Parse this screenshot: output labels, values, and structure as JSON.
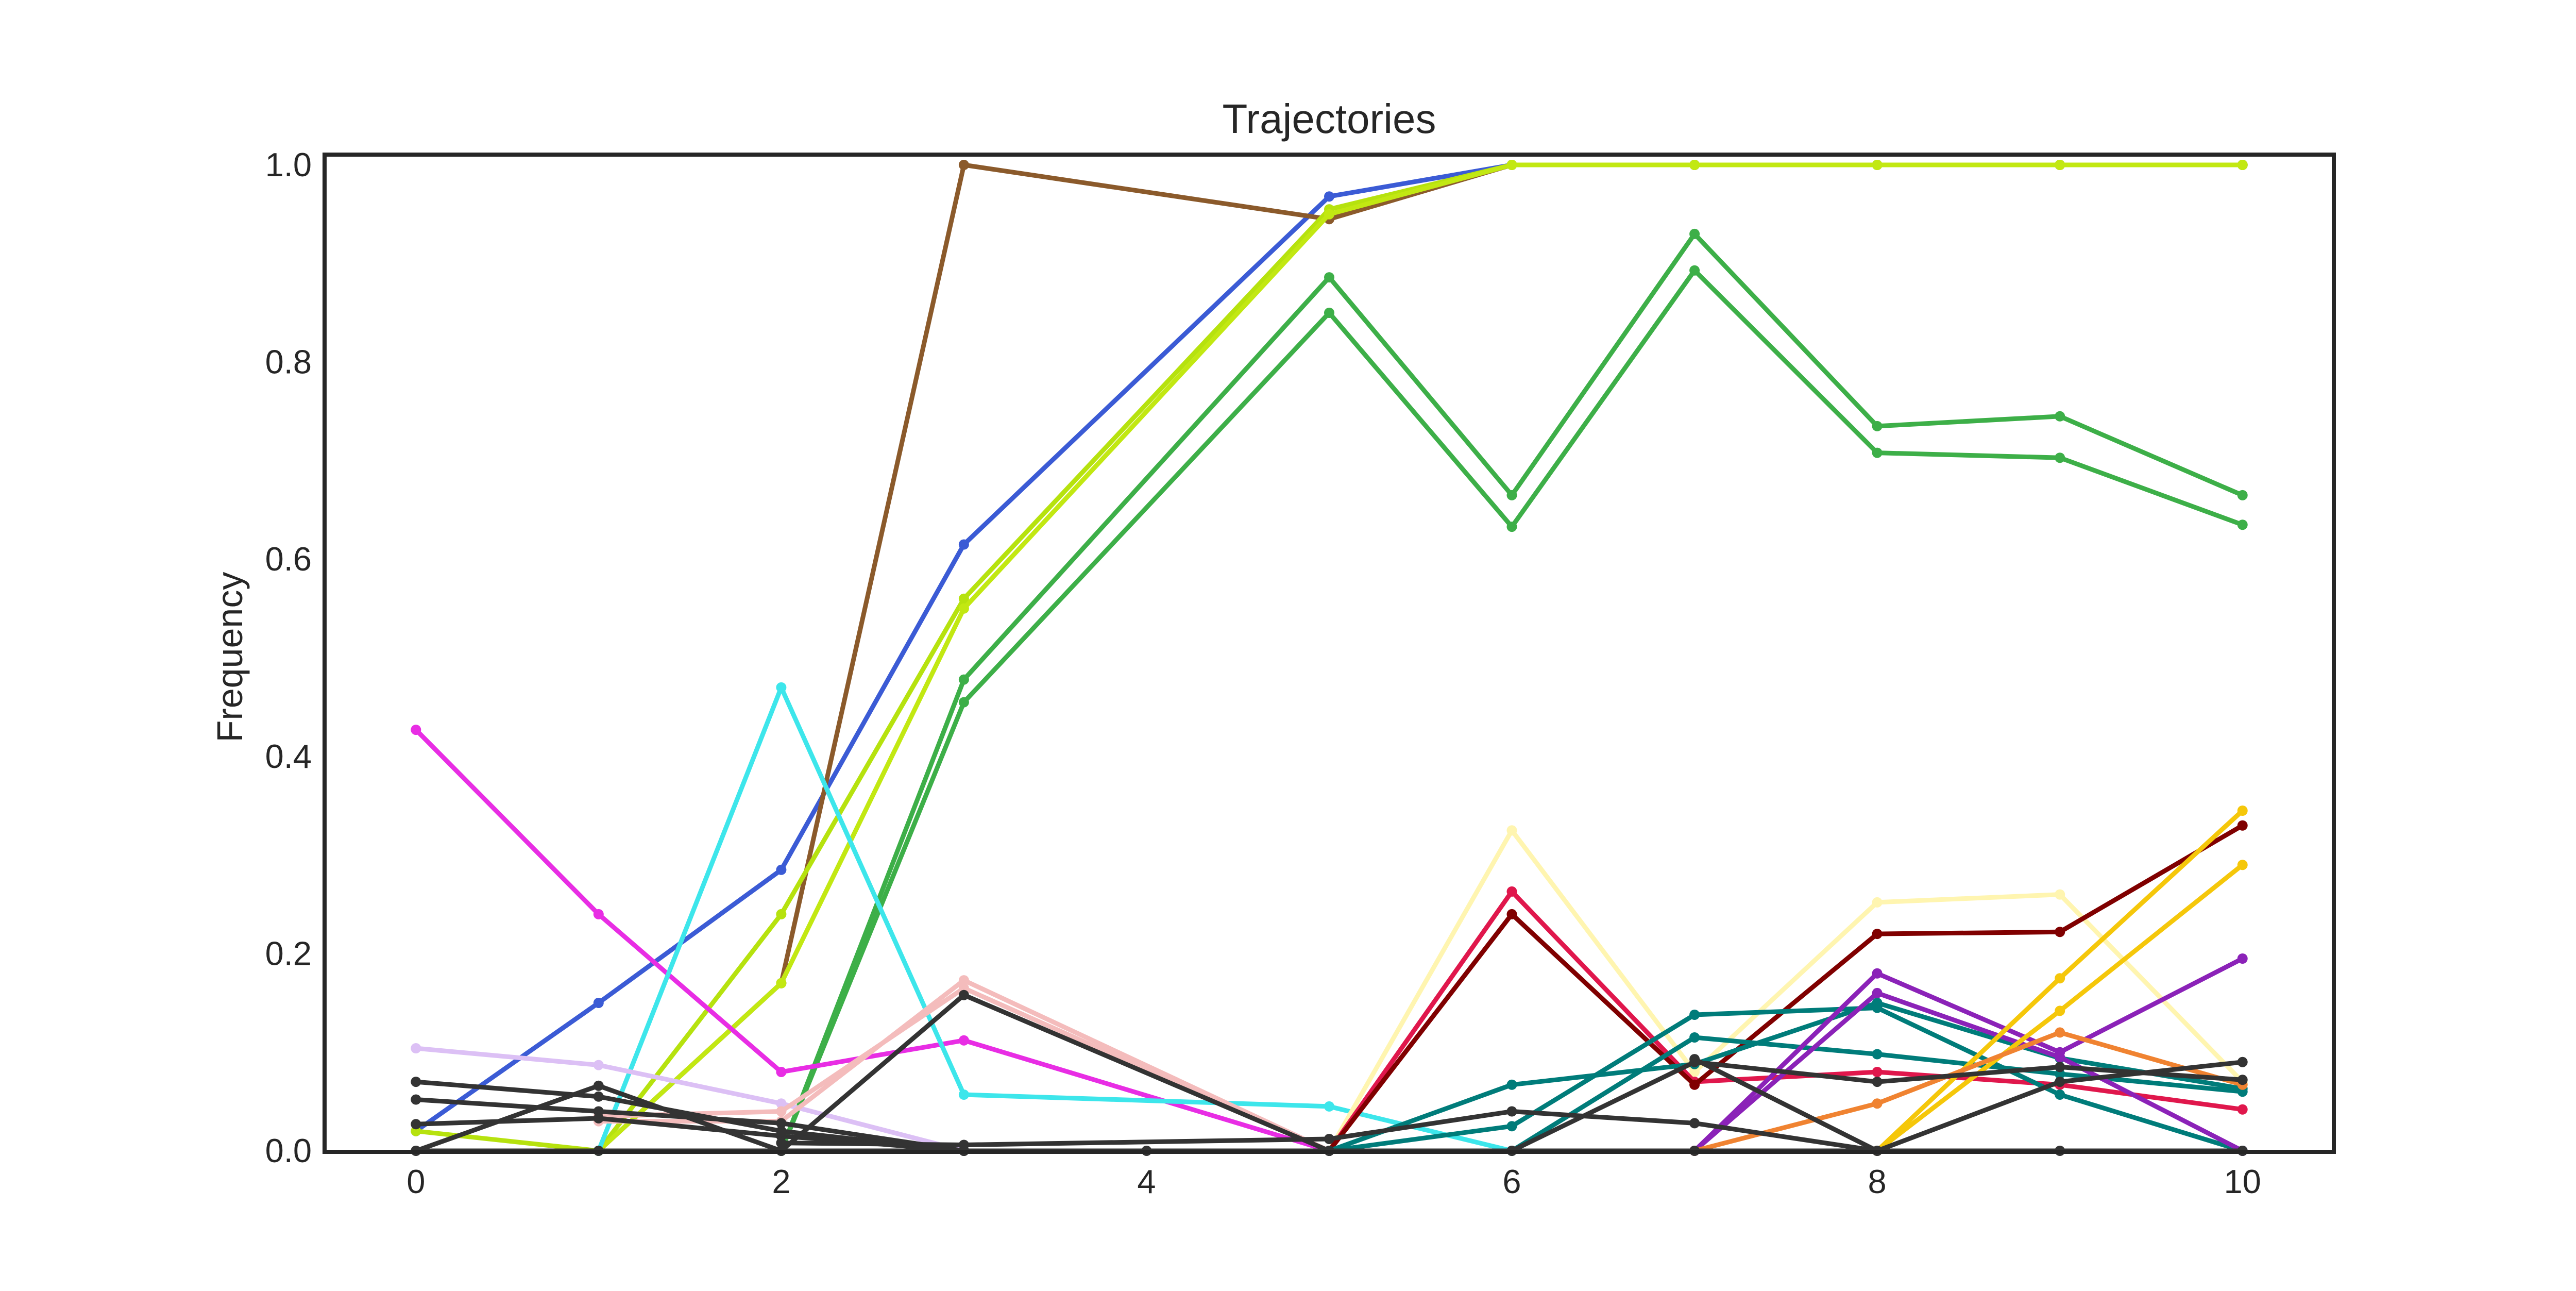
{
  "chart_data": {
    "type": "line",
    "title": "Trajectories",
    "xlabel": "",
    "ylabel": "Frequency",
    "xlim": [
      -0.5,
      10.5
    ],
    "ylim": [
      0.0,
      1.0
    ],
    "x": [
      0,
      1,
      2,
      3,
      4,
      5,
      6,
      7,
      8,
      9,
      10
    ],
    "xticks": [
      "0",
      "2",
      "4",
      "6",
      "8",
      "10"
    ],
    "yticks": [
      "0.0",
      "0.2",
      "0.4",
      "0.6",
      "0.8",
      "1.0"
    ],
    "grid": false,
    "legend": "none",
    "series": [
      {
        "color": "#3b5bd5",
        "points": [
          [
            0,
            0.02
          ],
          [
            1,
            0.15
          ],
          [
            2,
            0.285
          ],
          [
            3,
            0.615
          ],
          [
            5,
            0.968
          ],
          [
            6,
            1.0
          ],
          [
            7,
            1.0
          ],
          [
            8,
            1.0
          ],
          [
            9,
            1.0
          ],
          [
            10,
            1.0
          ]
        ]
      },
      {
        "color": "#8b5a2b",
        "points": [
          [
            1,
            0.0
          ],
          [
            2,
            0.17
          ],
          [
            3,
            1.0
          ],
          [
            5,
            0.945
          ],
          [
            6,
            1.0
          ],
          [
            7,
            1.0
          ],
          [
            8,
            1.0
          ],
          [
            9,
            1.0
          ],
          [
            10,
            1.0
          ]
        ]
      },
      {
        "color": "#b6e20e",
        "points": [
          [
            0,
            0.02
          ],
          [
            1,
            0.0
          ],
          [
            2,
            0.24
          ],
          [
            3,
            0.56
          ],
          [
            5,
            0.955
          ],
          [
            6,
            1.0
          ],
          [
            7,
            1.0
          ],
          [
            8,
            1.0
          ],
          [
            9,
            1.0
          ],
          [
            10,
            1.0
          ]
        ]
      },
      {
        "color": "#c2e812",
        "points": [
          [
            1,
            0.0
          ],
          [
            2,
            0.17
          ],
          [
            3,
            0.55
          ],
          [
            5,
            0.95
          ],
          [
            6,
            1.0
          ],
          [
            7,
            1.0
          ],
          [
            8,
            1.0
          ],
          [
            9,
            1.0
          ],
          [
            10,
            1.0
          ]
        ]
      },
      {
        "color": "#3daf48",
        "points": [
          [
            2,
            0.0
          ],
          [
            3,
            0.478
          ],
          [
            5,
            0.886
          ],
          [
            6,
            0.665
          ],
          [
            7,
            0.93
          ],
          [
            8,
            0.735
          ],
          [
            9,
            0.745
          ],
          [
            10,
            0.665
          ]
        ]
      },
      {
        "color": "#3daf48",
        "points": [
          [
            2,
            0.0
          ],
          [
            3,
            0.455
          ],
          [
            5,
            0.85
          ],
          [
            6,
            0.633
          ],
          [
            7,
            0.893
          ],
          [
            8,
            0.708
          ],
          [
            9,
            0.703
          ],
          [
            10,
            0.635
          ]
        ]
      },
      {
        "color": "#e82de4",
        "points": [
          [
            0,
            0.427
          ],
          [
            1,
            0.24
          ],
          [
            2,
            0.08
          ],
          [
            3,
            0.112
          ],
          [
            5,
            0.0
          ]
        ]
      },
      {
        "color": "#3de6eb",
        "points": [
          [
            1,
            0.0
          ],
          [
            2,
            0.47
          ],
          [
            3,
            0.057
          ],
          [
            5,
            0.045
          ],
          [
            6,
            0.0
          ]
        ]
      },
      {
        "color": "#dcc0f5",
        "points": [
          [
            0,
            0.104
          ],
          [
            1,
            0.087
          ],
          [
            2,
            0.048
          ],
          [
            3,
            0.0
          ]
        ]
      },
      {
        "color": "#f4bcbc",
        "points": [
          [
            1,
            0.03
          ],
          [
            2,
            0.03
          ],
          [
            3,
            0.173
          ],
          [
            5,
            0.0
          ]
        ]
      },
      {
        "color": "#f4bcbc",
        "points": [
          [
            1,
            0.035
          ],
          [
            2,
            0.04
          ],
          [
            3,
            0.165
          ],
          [
            5,
            0.0
          ]
        ]
      },
      {
        "color": "#fff5b0",
        "points": [
          [
            5,
            0.0
          ],
          [
            6,
            0.325
          ],
          [
            7,
            0.08
          ],
          [
            8,
            0.252
          ],
          [
            9,
            0.26
          ],
          [
            10,
            0.07
          ]
        ]
      },
      {
        "color": "#e0174c",
        "points": [
          [
            5,
            0.0
          ],
          [
            6,
            0.263
          ],
          [
            7,
            0.07
          ],
          [
            8,
            0.08
          ],
          [
            9,
            0.067
          ],
          [
            10,
            0.042
          ]
        ]
      },
      {
        "color": "#800000",
        "points": [
          [
            5,
            0.0
          ],
          [
            6,
            0.24
          ],
          [
            7,
            0.067
          ],
          [
            8,
            0.22
          ],
          [
            9,
            0.222
          ],
          [
            10,
            0.33
          ]
        ]
      },
      {
        "color": "#007c7a",
        "points": [
          [
            5,
            0.0
          ],
          [
            6,
            0.067
          ],
          [
            7,
            0.088
          ],
          [
            8,
            0.15
          ],
          [
            9,
            0.094
          ],
          [
            10,
            0.063
          ]
        ]
      },
      {
        "color": "#007c7a",
        "points": [
          [
            5,
            0.0
          ],
          [
            6,
            0.025
          ],
          [
            7,
            0.138
          ],
          [
            8,
            0.145
          ],
          [
            9,
            0.057
          ],
          [
            10,
            0.0
          ]
        ]
      },
      {
        "color": "#007c7a",
        "points": [
          [
            6,
            0.0
          ],
          [
            7,
            0.115
          ],
          [
            8,
            0.098
          ],
          [
            9,
            0.078
          ],
          [
            10,
            0.06
          ]
        ]
      },
      {
        "color": "#8b22b8",
        "points": [
          [
            7,
            0.0
          ],
          [
            8,
            0.18
          ],
          [
            9,
            0.1
          ],
          [
            10,
            0.195
          ]
        ]
      },
      {
        "color": "#8b22b8",
        "points": [
          [
            7,
            0.0
          ],
          [
            8,
            0.16
          ],
          [
            9,
            0.095
          ],
          [
            10,
            0.0
          ]
        ]
      },
      {
        "color": "#f5c70a",
        "points": [
          [
            8,
            0.0
          ],
          [
            9,
            0.175
          ],
          [
            10,
            0.345
          ]
        ]
      },
      {
        "color": "#f5c70a",
        "points": [
          [
            8,
            0.0
          ],
          [
            9,
            0.142
          ],
          [
            10,
            0.29
          ]
        ]
      },
      {
        "color": "#f08331",
        "points": [
          [
            7,
            0.0
          ],
          [
            8,
            0.048
          ],
          [
            9,
            0.12
          ],
          [
            10,
            0.067
          ]
        ]
      },
      {
        "color": "#333333",
        "points": [
          [
            0,
            0.07
          ],
          [
            1,
            0.055
          ],
          [
            2,
            0.02
          ],
          [
            3,
            0.0
          ]
        ]
      },
      {
        "color": "#333333",
        "points": [
          [
            0,
            0.052
          ],
          [
            1,
            0.04
          ],
          [
            2,
            0.028
          ],
          [
            3,
            0.0
          ]
        ]
      },
      {
        "color": "#333333",
        "points": [
          [
            0,
            0.027
          ],
          [
            1,
            0.033
          ],
          [
            2,
            0.015
          ],
          [
            3,
            0.0
          ]
        ]
      },
      {
        "color": "#333333",
        "points": [
          [
            0,
            0.0
          ],
          [
            1,
            0.066
          ],
          [
            2,
            0.0
          ],
          [
            3,
            0.158
          ],
          [
            5,
            0.0
          ]
        ]
      },
      {
        "color": "#333333",
        "points": [
          [
            2,
            0.008
          ],
          [
            3,
            0.006
          ],
          [
            5,
            0.012
          ],
          [
            6,
            0.04
          ],
          [
            7,
            0.028
          ],
          [
            8,
            0.0
          ]
        ]
      },
      {
        "color": "#333333",
        "points": [
          [
            7,
            0.093
          ],
          [
            8,
            0.0
          ],
          [
            9,
            0.07
          ],
          [
            10,
            0.09
          ]
        ]
      },
      {
        "color": "#333333",
        "points": [
          [
            6,
            0.0
          ],
          [
            7,
            0.09
          ],
          [
            8,
            0.07
          ],
          [
            9,
            0.085
          ],
          [
            10,
            0.072
          ]
        ]
      },
      {
        "color": "#333333",
        "points": [
          [
            0,
            0.0
          ],
          [
            1,
            0.0
          ],
          [
            2,
            0.0
          ],
          [
            3,
            0.0
          ],
          [
            4,
            0.0
          ],
          [
            5,
            0.0
          ],
          [
            6,
            0.0
          ],
          [
            7,
            0.0
          ],
          [
            8,
            0.0
          ],
          [
            9,
            0.0
          ],
          [
            10,
            0.0
          ]
        ]
      }
    ]
  }
}
